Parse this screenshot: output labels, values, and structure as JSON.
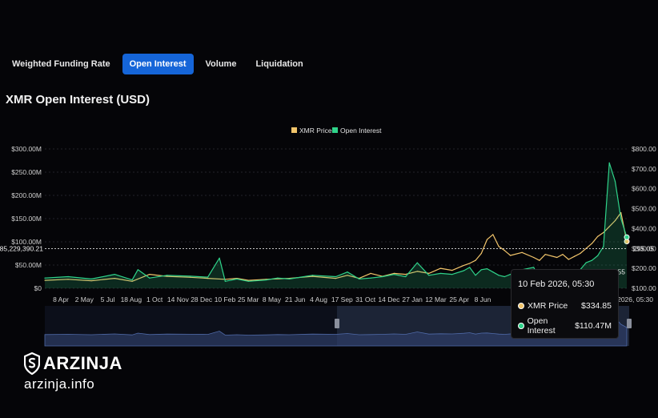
{
  "tabs": [
    {
      "label": "Weighted Funding Rate"
    },
    {
      "label": "Open Interest"
    },
    {
      "label": "Volume"
    },
    {
      "label": "Liquidation"
    }
  ],
  "active_tab": "Open Interest",
  "title": "XMR Open Interest (USD)",
  "brand": {
    "name": "ARZINJA",
    "url": "arzinja.info"
  },
  "tooltip": {
    "date": "10 Feb 2026, 05:30",
    "rows": [
      {
        "label": "XMR Price",
        "value": "$334.85",
        "color": "#f2c56b"
      },
      {
        "label": "Open Interest",
        "value": "$110.47M",
        "color": "#2fd38a"
      }
    ]
  },
  "colors": {
    "price": "#f2c56b",
    "oi": "#2fd38a",
    "tab_active": "#1565d8"
  },
  "chart_data": {
    "type": "line",
    "title": "XMR Open Interest (USD)",
    "legend": [
      "XMR Price",
      "Open Interest"
    ],
    "legend_position": "top-center",
    "x_ticks": [
      "8 Apr",
      "2 May",
      "5 Jul",
      "18 Aug",
      "1 Oct",
      "14 Nov",
      "28 Dec",
      "10 Feb",
      "25 Mar",
      "8 May",
      "21 Jun",
      "4 Aug",
      "17 Sep",
      "31 Oct",
      "14 Dec",
      "27 Jan",
      "12 Mar",
      "25 Apr",
      "8 Jun"
    ],
    "x_partial_labels": [
      "b 2026, 05:30",
      "55"
    ],
    "y_left_ticks": [
      "$0",
      "$50.00M",
      "$100.00M",
      "$150.00M",
      "$200.00M",
      "$250.00M",
      "$300.00M"
    ],
    "y_right_ticks": [
      "$100.00",
      "$200.00",
      "$300.00",
      "$400.00",
      "$500.00",
      "$600.00",
      "$700.00",
      "$800.00"
    ],
    "y_left_range": [
      0,
      300
    ],
    "y_right_range": [
      100,
      800
    ],
    "crosshair": {
      "left_label": "85,229,390.21",
      "right_label": "295.05"
    },
    "grid": true,
    "x_range": [
      0,
      100
    ],
    "series": [
      {
        "name": "XMR Price",
        "axis": "right",
        "color": "#f2c56b",
        "x": [
          0,
          4,
          8,
          12,
          15,
          18,
          21,
          25,
          28,
          31,
          33,
          35,
          38,
          42,
          46,
          50,
          52,
          54,
          56,
          58,
          60,
          62,
          64,
          66,
          68,
          70,
          72,
          73,
          74,
          75,
          76,
          77,
          78,
          79,
          80,
          82,
          84,
          85,
          86,
          88,
          89,
          90,
          91,
          92,
          93,
          94,
          95,
          96,
          97,
          98,
          99,
          100
        ],
        "values": [
          140,
          145,
          138,
          150,
          135,
          170,
          160,
          155,
          150,
          145,
          150,
          140,
          145,
          150,
          160,
          150,
          165,
          150,
          175,
          160,
          175,
          170,
          185,
          175,
          200,
          190,
          215,
          225,
          240,
          275,
          345,
          370,
          310,
          290,
          265,
          280,
          255,
          240,
          270,
          255,
          270,
          245,
          260,
          275,
          300,
          325,
          360,
          380,
          410,
          440,
          480,
          335
        ]
      },
      {
        "name": "Open Interest",
        "axis": "left",
        "color": "#2fd38a",
        "x": [
          0,
          4,
          8,
          12,
          15,
          16,
          18,
          21,
          25,
          28,
          30,
          31,
          33,
          35,
          38,
          40,
          42,
          46,
          50,
          52,
          54,
          56,
          58,
          60,
          62,
          64,
          66,
          68,
          70,
          72,
          73,
          74,
          75,
          76,
          77,
          78,
          79,
          80,
          82,
          84,
          85,
          86,
          88,
          89,
          90,
          91,
          92,
          93,
          94,
          95,
          96,
          97,
          98,
          99,
          100
        ],
        "values": [
          22,
          25,
          20,
          30,
          18,
          40,
          22,
          28,
          26,
          24,
          65,
          15,
          20,
          15,
          18,
          22,
          20,
          28,
          25,
          35,
          20,
          22,
          25,
          30,
          25,
          55,
          28,
          32,
          30,
          38,
          45,
          28,
          40,
          42,
          35,
          28,
          25,
          30,
          40,
          45,
          20,
          25,
          30,
          32,
          25,
          28,
          40,
          55,
          60,
          70,
          90,
          270,
          230,
          150,
          110
        ]
      }
    ]
  }
}
